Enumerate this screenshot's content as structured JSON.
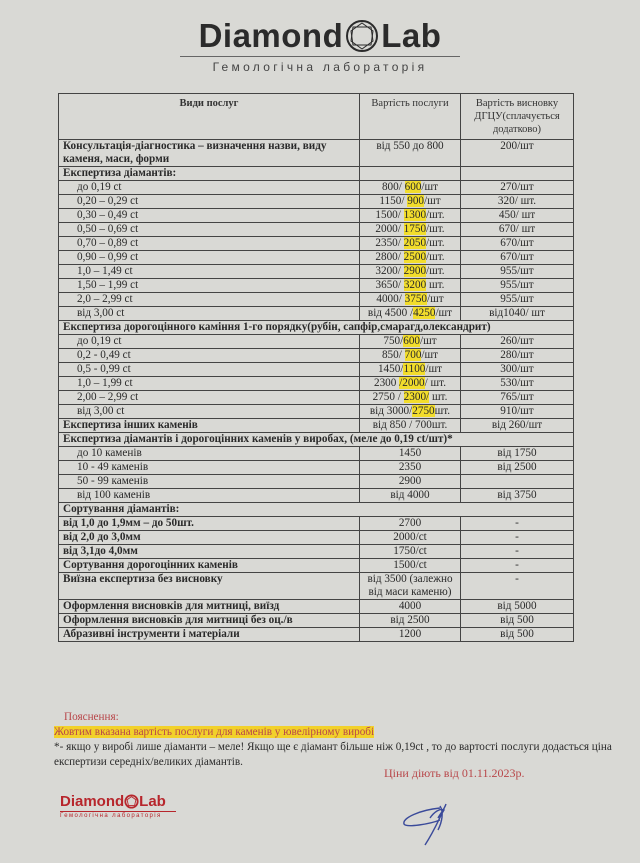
{
  "header": {
    "logo_left": "Diamond",
    "logo_right": "Lab",
    "logo_subtitle": "Гемологічна лабораторія"
  },
  "table": {
    "columns": [
      "Види послуг",
      "Вартість послуги",
      "Вартість висновку ДГЦУ(сплачується додатково)"
    ],
    "rows": [
      {
        "label": "Консультація-діагностика – визначення назви, виду каменя, маси, форми",
        "bold": true,
        "price": {
          "pre": "від 550 до 800"
        },
        "conclusion": "200/шт"
      },
      {
        "label": "Експертиза діамантів:",
        "bold": true,
        "price": {},
        "conclusion": ""
      },
      {
        "label": "до 0,19 ct",
        "indent": true,
        "price": {
          "pre": "800/ ",
          "hl": "600",
          "post": "/шт"
        },
        "conclusion": "270/шт"
      },
      {
        "label": "0,20 – 0,29 ct",
        "indent": true,
        "price": {
          "pre": "1150/ ",
          "hl": "900",
          "post": "/шт"
        },
        "conclusion": "320/ шт."
      },
      {
        "label": "0,30 – 0,49 ct",
        "indent": true,
        "price": {
          "pre": "1500/ ",
          "hl": "1300",
          "post": "/шт."
        },
        "conclusion": "450/ шт"
      },
      {
        "label": "0,50 – 0,69 ct",
        "indent": true,
        "price": {
          "pre": "2000/ ",
          "hl": "1750",
          "post": "/шт."
        },
        "conclusion": "670/ шт"
      },
      {
        "label": "0,70 – 0,89 ct",
        "indent": true,
        "price": {
          "pre": "2350/ ",
          "hl": "2050",
          "post": "/шт."
        },
        "conclusion": "670/шт"
      },
      {
        "label": "0,90 – 0,99 ct",
        "indent": true,
        "price": {
          "pre": "2800/ ",
          "hl": "2500",
          "post": "/шт."
        },
        "conclusion": "670/шт"
      },
      {
        "label": "1,0 – 1,49 ct",
        "indent": true,
        "price": {
          "pre": "3200/ ",
          "hl": "2900",
          "post": "/шт."
        },
        "conclusion": "955/шт"
      },
      {
        "label": "1,50 – 1,99 ct",
        "indent": true,
        "price": {
          "pre": "3650/ ",
          "hl": "3200",
          "post": " шт."
        },
        "conclusion": "955/шт"
      },
      {
        "label": "2,0 – 2,99 ct",
        "indent": true,
        "price": {
          "pre": "4000/ ",
          "hl": "3750",
          "post": "/шт"
        },
        "conclusion": "955/шт"
      },
      {
        "label": "від 3,00 ct",
        "indent": true,
        "price": {
          "pre": "від 4500 /",
          "hl": "4250",
          "post": "/шт"
        },
        "conclusion": "від1040/ шт"
      },
      {
        "label": "Експертиза дорогоцінного каміння 1-го порядку(рубін, сапфір,смарагд,олександрит)",
        "bold": true,
        "span": true
      },
      {
        "label": "до 0,19 ct",
        "indent": true,
        "price": {
          "pre": "750/",
          "hl": "600",
          "post": "/шт"
        },
        "conclusion": "260/шт"
      },
      {
        "label": "0,2 - 0,49 ct",
        "indent": true,
        "price": {
          "pre": "850/ ",
          "hl": "700",
          "post": "/шт"
        },
        "conclusion": "280/шт"
      },
      {
        "label": "0,5 - 0,99 ct",
        "indent": true,
        "price": {
          "pre": "1450/",
          "hl": "1100",
          "post": "/шт"
        },
        "conclusion": "300/шт"
      },
      {
        "label": "1,0 – 1,99 ct",
        "indent": true,
        "price": {
          "pre": "2300 ",
          "hl": "/2000",
          "post": "/ шт."
        },
        "conclusion": "530/шт"
      },
      {
        "label": "2,00 – 2,99 ct",
        "indent": true,
        "price": {
          "pre": "2750 / ",
          "hl": "2300/",
          "post": " шт."
        },
        "conclusion": "765/шт"
      },
      {
        "label": "від 3,00 ct",
        "indent": true,
        "price": {
          "pre": "від 3000/",
          "hl": "2750",
          "post": "шт."
        },
        "conclusion": "910/шт"
      },
      {
        "label": "Експертиза інших каменів",
        "bold": true,
        "price": {
          "pre": "від 850 / 700шт."
        },
        "conclusion": "від  260/шт"
      },
      {
        "label": "Експертиза діамантів і дорогоцінних каменів у виробах, (меле до 0,19 ct/шт)*",
        "bold": true,
        "span": true
      },
      {
        "label": "до 10 каменів",
        "indent": true,
        "price": {
          "pre": "1450"
        },
        "conclusion": "від 1750"
      },
      {
        "label": "10 - 49 каменів",
        "indent": true,
        "price": {
          "pre": "2350"
        },
        "conclusion": "від 2500"
      },
      {
        "label": "50 - 99 каменів",
        "indent": true,
        "price": {
          "pre": "2900"
        },
        "conclusion": ""
      },
      {
        "label": "від 100 каменів",
        "indent": true,
        "price": {
          "pre": "від 4000"
        },
        "conclusion": "від 3750"
      },
      {
        "label": "Сортування діамантів:",
        "bold": true,
        "span": true
      },
      {
        "label": "від 1,0 до 1,9мм – до 50шт.",
        "bold": true,
        "price": {
          "pre": "2700"
        },
        "conclusion": "-"
      },
      {
        "label": "від 2,0 до 3,0мм",
        "bold": true,
        "price": {
          "pre": "2000/ct"
        },
        "conclusion": "-"
      },
      {
        "label": "від 3,1до 4,0мм",
        "bold": true,
        "price": {
          "pre": "1750/ct"
        },
        "conclusion": "-"
      },
      {
        "label": "Сортування дорогоцінних каменів",
        "bold": true,
        "price": {
          "pre": "1500/ct"
        },
        "conclusion": "-"
      },
      {
        "label": "Виїзна експертиза без висновку",
        "bold": true,
        "price": {
          "pre": "від 3500 (залежно від маси каменю)"
        },
        "conclusion": "-"
      },
      {
        "label": "Оформлення висновків для митниці, виїзд",
        "bold": true,
        "price": {
          "pre": "4000"
        },
        "conclusion": "від 5000"
      },
      {
        "label": "Оформлення висновків для митниці без оц./в",
        "bold": true,
        "price": {
          "pre": "від 2500"
        },
        "conclusion": "від 500"
      },
      {
        "label": "Абразивні інструменти і матеріали",
        "bold": true,
        "price": {
          "pre": "1200"
        },
        "conclusion": "від 500"
      }
    ]
  },
  "notes": {
    "title": "Пояснення:",
    "highlight_note": "Жовтим вказана вартість послуги для  каменів у ювелірному виробі",
    "asterisk_note": "*- якщо у виробі лише діаманти – меле! Якщо ще є діамант більше ніж 0,19ct , то до вартості послуги додасться ціна експертизи середніх/великих діамантів.",
    "valid_from": "Ціни діють від 01.11.2023р."
  },
  "footer": {
    "logo_left": "Diamond",
    "logo_right": "Lab",
    "logo_subtitle": "Гемологічна лабораторія"
  },
  "colors": {
    "highlight": "#f2dd2c",
    "note_red": "#b8474a",
    "logo_red": "#b7262c",
    "signature": "#3a4a9a"
  }
}
